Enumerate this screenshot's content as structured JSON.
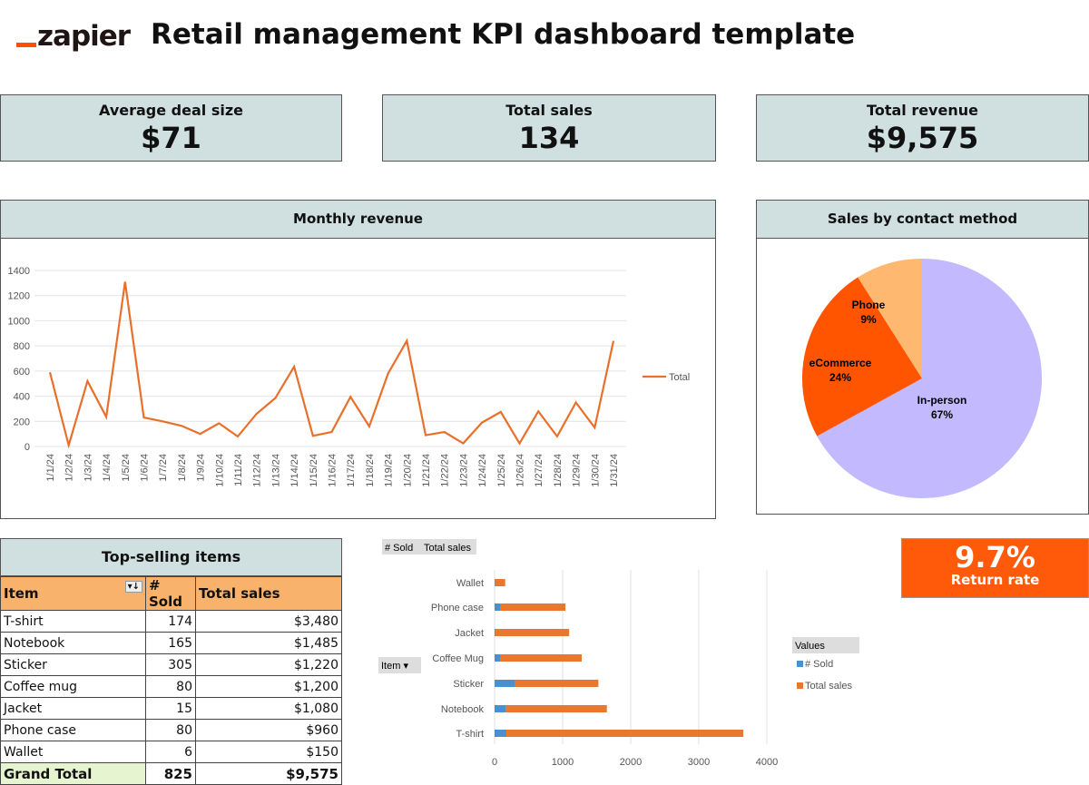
{
  "header": {
    "logo": "zapier",
    "title": "Retail management KPI dashboard template"
  },
  "kpis": [
    {
      "label": "Average deal size",
      "value": "$71"
    },
    {
      "label": "Total sales",
      "value": "134"
    },
    {
      "label": "Total revenue",
      "value": "$9,575"
    }
  ],
  "colors": {
    "header_bg": "#d0e0e0",
    "line": "#e8702a",
    "ecommerce": "#ff5500",
    "phone": "#ffb870",
    "in_person": "#c3b9ff",
    "sold": "#4a8fd0",
    "sales": "#e8782e",
    "return_rate": "#ff5a0a"
  },
  "chart_data": [
    {
      "type": "line",
      "title": "Monthly revenue",
      "x": [
        "1/1/24",
        "1/2/24",
        "1/3/24",
        "1/4/24",
        "1/5/24",
        "1/6/24",
        "1/7/24",
        "1/8/24",
        "1/9/24",
        "1/10/24",
        "1/11/24",
        "1/12/24",
        "1/13/24",
        "1/14/24",
        "1/15/24",
        "1/16/24",
        "1/17/24",
        "1/18/24",
        "1/19/24",
        "1/20/24",
        "1/21/24",
        "1/22/24",
        "1/23/24",
        "1/24/24",
        "1/25/24",
        "1/26/24",
        "1/27/24",
        "1/28/24",
        "1/29/24",
        "1/30/24",
        "1/31/24"
      ],
      "series": [
        {
          "name": "Total",
          "values": [
            590,
            10,
            520,
            235,
            1310,
            230,
            200,
            165,
            100,
            185,
            80,
            260,
            385,
            635,
            85,
            115,
            395,
            160,
            580,
            840,
            90,
            115,
            25,
            190,
            275,
            25,
            280,
            80,
            350,
            150,
            840
          ]
        }
      ],
      "yticks": [
        0,
        200,
        400,
        600,
        800,
        1000,
        1200,
        1400
      ],
      "ylim": [
        0,
        1400
      ],
      "legend": "right",
      "grid": true
    },
    {
      "type": "pie",
      "title": "Sales by contact method",
      "slices": [
        {
          "label": "In-person",
          "value": 67,
          "pct": "67%"
        },
        {
          "label": "eCommerce",
          "value": 24,
          "pct": "24%"
        },
        {
          "label": "Phone",
          "value": 9,
          "pct": "9%"
        }
      ]
    },
    {
      "type": "bar",
      "orientation": "horizontal",
      "stacked": true,
      "categories": [
        "Wallet",
        "Phone case",
        "Jacket",
        "Coffee Mug",
        "Sticker",
        "Notebook",
        "T-shirt"
      ],
      "series": [
        {
          "name": "# Sold",
          "values": [
            6,
            80,
            15,
            80,
            305,
            165,
            174
          ]
        },
        {
          "name": "Total sales",
          "values": [
            150,
            960,
            1080,
            1200,
            1220,
            1485,
            3480
          ]
        }
      ],
      "xticks": [
        0,
        1000,
        2000,
        3000,
        4000
      ],
      "xlim": [
        0,
        4000
      ],
      "legend_title": "Values",
      "legend": "right",
      "field_buttons": [
        "# Sold",
        "Total sales"
      ],
      "axis_button": "Item"
    }
  ],
  "table": {
    "title": "Top-selling items",
    "headers": [
      "Item",
      "# Sold",
      "Total sales"
    ],
    "rows": [
      [
        "T-shirt",
        "174",
        "$3,480"
      ],
      [
        "Notebook",
        "165",
        "$1,485"
      ],
      [
        "Sticker",
        "305",
        "$1,220"
      ],
      [
        "Coffee mug",
        "80",
        "$1,200"
      ],
      [
        "Jacket",
        "15",
        "$1,080"
      ],
      [
        "Phone case",
        "80",
        "$960"
      ],
      [
        "Wallet",
        "6",
        "$150"
      ]
    ],
    "total": [
      "Grand Total",
      "825",
      "$9,575"
    ]
  },
  "return_rate": {
    "value": "9.7%",
    "label": "Return rate"
  }
}
